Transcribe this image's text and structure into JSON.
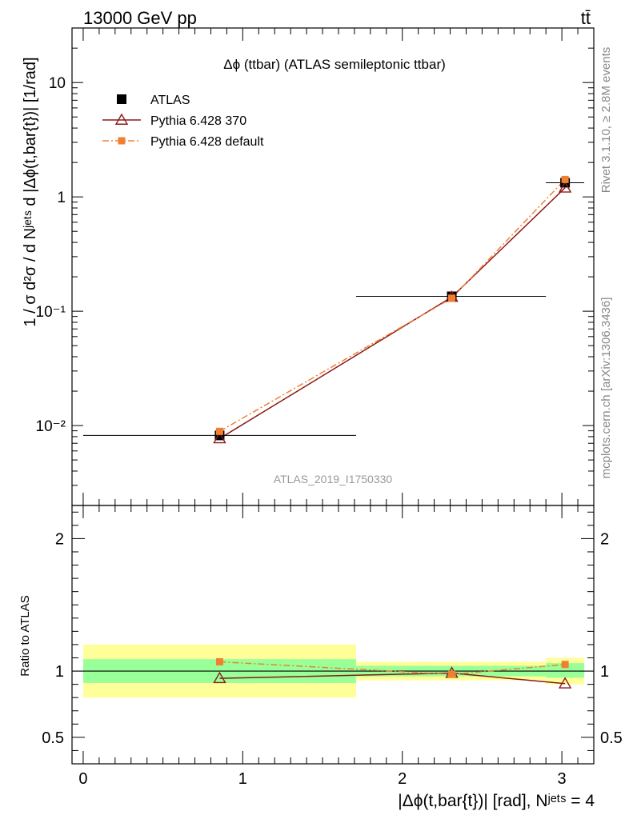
{
  "header": {
    "energy_label": "13000 GeV pp",
    "process_label": "tt̄"
  },
  "side_labels": {
    "rivet": "Rivet 3.1.10, ≥ 2.8M events",
    "mcplots": "mcplots.cern.ch [arXiv:1306.3436]"
  },
  "chart_data": [
    {
      "type": "line",
      "title": "Δϕ (ttbar) (ATLAS semileptonic ttbar)",
      "watermark": "ATLAS_2019_I1750330",
      "ylabel": "1 / σ d²σ / d Nʲᵉᵗˢ d |Δϕ(t,bar{t})| [1/rad]",
      "yscale": "log",
      "ylim": [
        0.002,
        30
      ],
      "xlim": [
        -0.07,
        3.2
      ],
      "ytick_labels": [
        "10⁻²",
        "10⁻¹",
        "1",
        "10"
      ],
      "legend_placement": "top-left",
      "series": [
        {
          "name": "ATLAS",
          "color": "#000000",
          "marker": "square",
          "x": [
            0.855,
            2.31,
            3.02
          ],
          "y": [
            0.0082,
            0.135,
            1.33
          ],
          "xerr": [
            [
              0,
              1.71
            ],
            [
              1.71,
              2.9
            ],
            [
              2.9,
              3.14
            ]
          ]
        },
        {
          "name": "Pythia 6.428 370",
          "color": "#8b1a1a",
          "marker": "triangle-open",
          "linestyle": "solid",
          "x": [
            0.855,
            2.31,
            3.02
          ],
          "y": [
            0.0077,
            0.133,
            1.2
          ]
        },
        {
          "name": "Pythia 6.428 default",
          "color": "#f08030",
          "marker": "square-small",
          "linestyle": "dashdot",
          "x": [
            0.855,
            2.31,
            3.02
          ],
          "y": [
            0.0089,
            0.13,
            1.42
          ]
        }
      ]
    },
    {
      "type": "line",
      "ylabel": "Ratio to ATLAS",
      "xlabel": "|Δϕ(t,bar{t})| [rad], Nʲᵉᵗˢ = 4",
      "ylim": [
        0.3,
        2.25
      ],
      "xlim": [
        -0.07,
        3.2
      ],
      "xtick_labels": [
        "0",
        "1",
        "2",
        "3"
      ],
      "ytick_labels": [
        "0.5",
        "1",
        "2"
      ],
      "uncertainty_bands": [
        {
          "x0": 0,
          "x1": 1.71,
          "green": [
            0.91,
            1.09
          ],
          "yellow": [
            0.8,
            1.2
          ]
        },
        {
          "x0": 1.71,
          "x1": 2.9,
          "green": [
            0.96,
            1.04
          ],
          "yellow": [
            0.93,
            1.07
          ]
        },
        {
          "x0": 2.9,
          "x1": 3.14,
          "green": [
            0.95,
            1.06
          ],
          "yellow": [
            0.9,
            1.1
          ]
        }
      ],
      "series": [
        {
          "name": "Pythia 6.428 370",
          "color": "#8b1a1a",
          "marker": "triangle-open",
          "x": [
            0.855,
            2.31,
            3.02
          ],
          "y": [
            0.945,
            0.985,
            0.905
          ]
        },
        {
          "name": "Pythia 6.428 default",
          "color": "#f08030",
          "marker": "square-small",
          "x": [
            0.855,
            2.31,
            3.02
          ],
          "y": [
            1.07,
            0.975,
            1.05
          ]
        }
      ]
    }
  ]
}
